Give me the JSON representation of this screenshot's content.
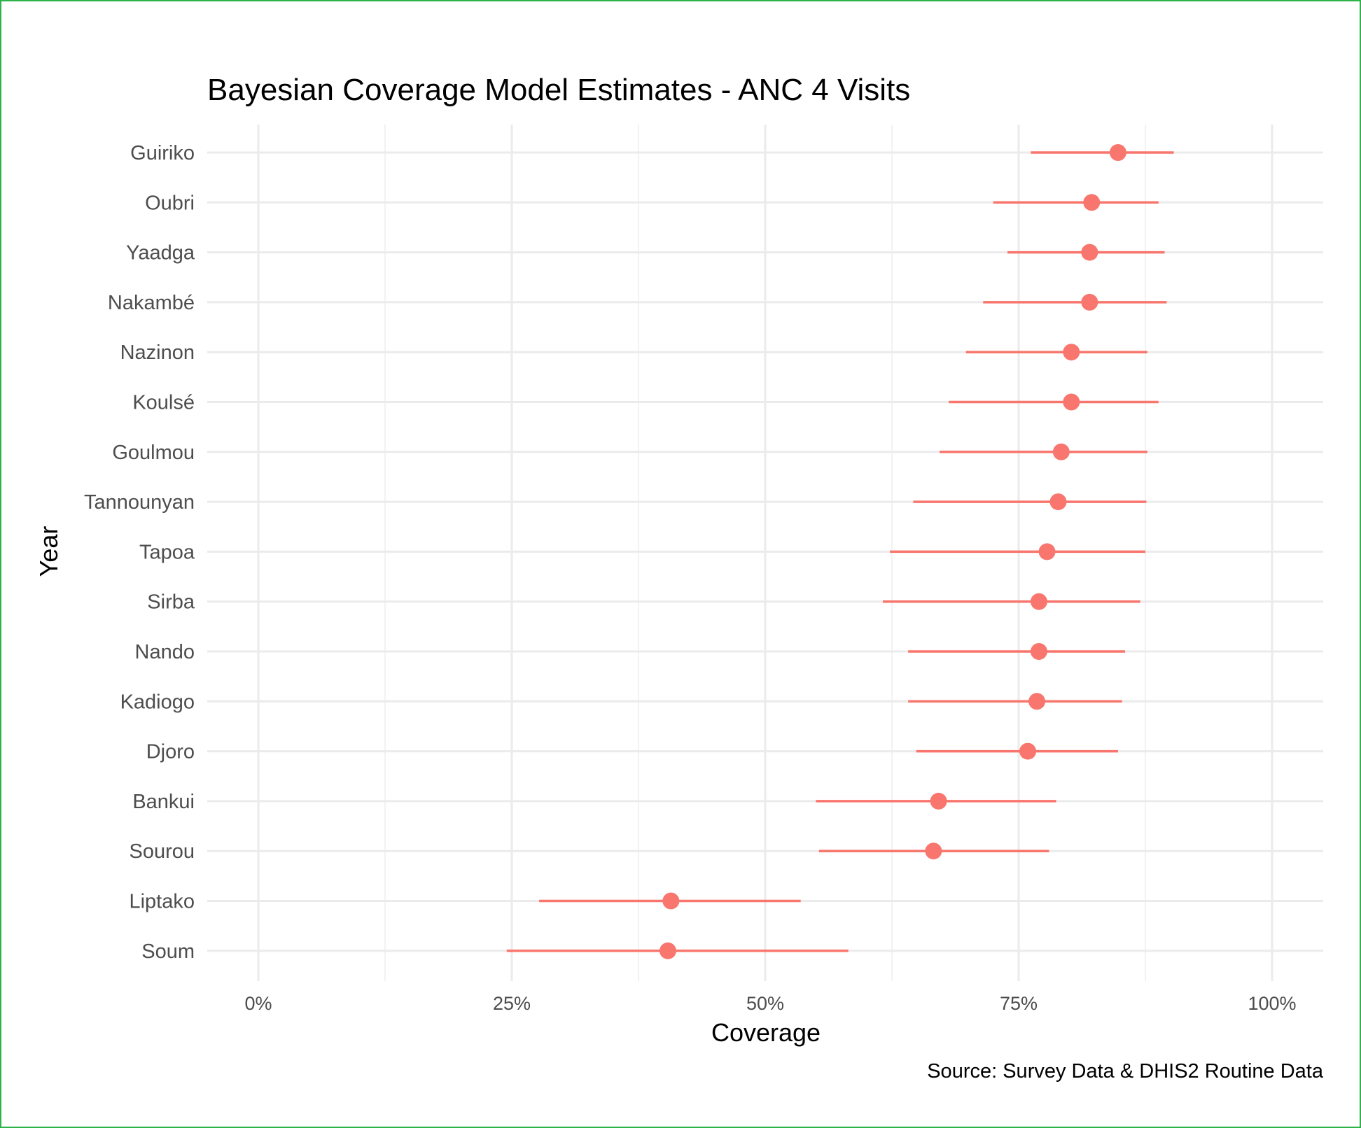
{
  "chart_data": {
    "type": "scatter",
    "title": "Bayesian Coverage Model Estimates - ANC 4 Visits",
    "xlabel": "Coverage",
    "ylabel": "Year",
    "caption": "Source: Survey Data & DHIS2 Routine Data",
    "x_ticks": [
      "0%",
      "25%",
      "50%",
      "75%",
      "100%"
    ],
    "xlim": [
      0,
      1.05
    ],
    "grid": true,
    "point_color": "#f8766d",
    "categories": [
      "Guiriko",
      "Oubri",
      "Yaadga",
      "Nakambé",
      "Nazinon",
      "Koulsé",
      "Goulmou",
      "Tannounyan",
      "Tapoa",
      "Sirba",
      "Nando",
      "Kadiogo",
      "Djoro",
      "Bankui",
      "Sourou",
      "Liptako",
      "Soum"
    ],
    "estimate": [
      0.848,
      0.822,
      0.82,
      0.82,
      0.802,
      0.802,
      0.792,
      0.789,
      0.778,
      0.77,
      0.77,
      0.768,
      0.759,
      0.671,
      0.666,
      0.407,
      0.404
    ],
    "lower": [
      0.762,
      0.725,
      0.739,
      0.715,
      0.698,
      0.681,
      0.672,
      0.646,
      0.623,
      0.616,
      0.641,
      0.641,
      0.649,
      0.55,
      0.553,
      0.277,
      0.245
    ],
    "upper": [
      0.903,
      0.888,
      0.894,
      0.896,
      0.877,
      0.888,
      0.877,
      0.876,
      0.875,
      0.87,
      0.855,
      0.852,
      0.848,
      0.787,
      0.78,
      0.535,
      0.582
    ]
  }
}
